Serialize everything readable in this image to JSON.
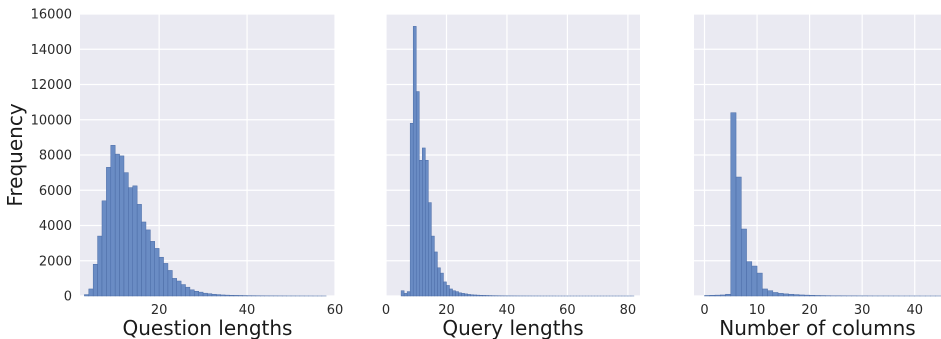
{
  "figure": {
    "ylabel": "Frequency"
  },
  "colors": {
    "panel_background": "#eaeaf2",
    "grid": "#ffffff",
    "bar_fill": "#6a8cc4",
    "bar_edge": "#4a6ba6"
  },
  "chart_data": [
    {
      "type": "bar",
      "subtype": "histogram",
      "title": "",
      "xlabel": "Question lengths",
      "ylabel": "Frequency",
      "xlim": [
        2,
        60
      ],
      "ylim": [
        0,
        16000
      ],
      "xticks": [
        20,
        40,
        60
      ],
      "yticks": [
        0,
        2000,
        4000,
        6000,
        8000,
        10000,
        12000,
        14000,
        16000
      ],
      "grid": true,
      "bin_width": 1,
      "x": [
        3,
        4,
        5,
        6,
        7,
        8,
        9,
        10,
        11,
        12,
        13,
        14,
        15,
        16,
        17,
        18,
        19,
        20,
        21,
        22,
        23,
        24,
        25,
        26,
        27,
        28,
        29,
        30,
        31,
        32,
        33,
        34,
        35,
        36,
        37,
        38,
        39,
        40,
        41,
        42,
        43,
        44,
        45,
        46,
        47,
        48,
        49,
        50,
        51,
        52,
        53,
        54,
        55,
        56,
        57
      ],
      "values": [
        80,
        400,
        1800,
        3400,
        5400,
        7300,
        8550,
        8050,
        7950,
        7000,
        6150,
        6250,
        5200,
        4200,
        3750,
        3100,
        2700,
        2200,
        1850,
        1450,
        1000,
        850,
        650,
        500,
        350,
        270,
        220,
        160,
        130,
        100,
        80,
        60,
        50,
        40,
        35,
        30,
        25,
        20,
        18,
        15,
        12,
        10,
        9,
        8,
        7,
        6,
        5,
        5,
        4,
        4,
        3,
        3,
        2,
        2,
        2
      ]
    },
    {
      "type": "bar",
      "subtype": "histogram",
      "title": "",
      "xlabel": "Query lengths",
      "ylabel": "",
      "xlim": [
        0,
        84
      ],
      "ylim": [
        0,
        16000
      ],
      "xticks": [
        0,
        20,
        40,
        60,
        80
      ],
      "yticks": [
        0,
        2000,
        4000,
        6000,
        8000,
        10000,
        12000,
        14000,
        16000
      ],
      "grid": true,
      "bin_width": 1,
      "x": [
        5,
        6,
        7,
        8,
        9,
        10,
        11,
        12,
        13,
        14,
        15,
        16,
        17,
        18,
        19,
        20,
        21,
        22,
        23,
        24,
        25,
        26,
        27,
        28,
        29,
        30,
        31,
        32,
        33,
        34,
        35,
        36,
        37,
        38,
        39,
        40,
        41,
        42,
        43,
        44,
        45,
        46,
        47,
        48,
        49,
        50,
        51,
        52,
        53,
        54,
        55,
        56,
        57,
        58,
        59,
        60,
        61,
        62,
        63,
        64,
        65,
        66,
        67,
        68,
        69,
        70,
        71,
        72,
        73,
        74,
        75,
        76,
        77,
        78,
        79,
        80,
        81
      ],
      "values": [
        300,
        150,
        250,
        9800,
        15300,
        11600,
        7700,
        8400,
        7700,
        5300,
        3400,
        2500,
        1600,
        1300,
        800,
        600,
        400,
        300,
        250,
        180,
        150,
        120,
        90,
        70,
        60,
        50,
        40,
        35,
        30,
        25,
        20,
        18,
        15,
        12,
        10,
        9,
        8,
        7,
        6,
        5,
        5,
        4,
        4,
        3,
        3,
        3,
        2,
        2,
        2,
        2,
        2,
        1,
        1,
        1,
        1,
        1,
        1,
        1,
        1,
        1,
        1,
        1,
        1,
        1,
        1,
        1,
        1,
        1,
        1,
        1,
        1,
        1,
        1,
        1,
        1,
        1,
        1
      ]
    },
    {
      "type": "bar",
      "subtype": "histogram",
      "title": "",
      "xlabel": "Number of columns",
      "ylabel": "",
      "xlim": [
        -2,
        45
      ],
      "ylim": [
        0,
        16000
      ],
      "xticks": [
        0,
        10,
        20,
        30,
        40
      ],
      "yticks": [
        0,
        2000,
        4000,
        6000,
        8000,
        10000,
        12000,
        14000,
        16000
      ],
      "grid": true,
      "bin_width": 1,
      "x": [
        0,
        1,
        2,
        3,
        4,
        5,
        6,
        7,
        8,
        9,
        10,
        11,
        12,
        13,
        14,
        15,
        16,
        17,
        18,
        19,
        20,
        21,
        22,
        23,
        24,
        25,
        26,
        27,
        28,
        29,
        30,
        31,
        32,
        33,
        34,
        35,
        36,
        37,
        38,
        39,
        40,
        41,
        42,
        43,
        44
      ],
      "values": [
        30,
        40,
        50,
        60,
        100,
        10400,
        6750,
        3800,
        1950,
        1700,
        1300,
        400,
        300,
        200,
        150,
        120,
        100,
        80,
        60,
        50,
        40,
        30,
        25,
        20,
        15,
        15,
        12,
        10,
        10,
        8,
        8,
        6,
        5,
        5,
        5,
        4,
        4,
        3,
        3,
        3,
        3,
        2,
        2,
        2,
        2
      ]
    }
  ]
}
